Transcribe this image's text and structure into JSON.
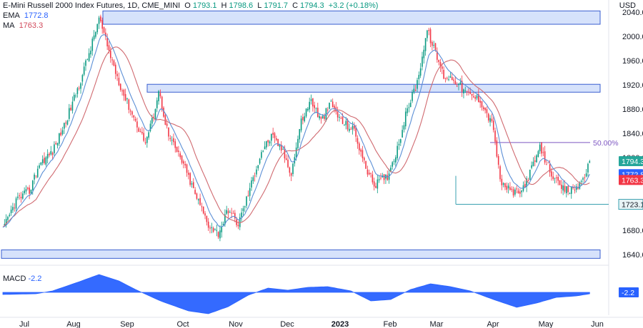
{
  "header": {
    "symbol": "E-Mini Russell 2000 Index Futures, 1D, CME_MINI",
    "open_label": "O",
    "open": "1793.1",
    "high_label": "H",
    "high": "1798.6",
    "low_label": "L",
    "low": "1791.7",
    "close_label": "C",
    "close": "1794.3",
    "change": "+3.2 (+0.18%)",
    "ema_label": "EMA",
    "ema_value": "1772.8",
    "ma_label": "MA",
    "ma_value": "1763.3",
    "currency": "USD"
  },
  "colors": {
    "up": "#089981",
    "down": "#f23645",
    "ema": "#5b8fd6",
    "ma": "#d06a70",
    "zone_fill": "#d6e2fb",
    "zone_stroke": "#3a5fd0",
    "macd": "#2962ff",
    "last_price_bg": "#26a69a",
    "ema_bg": "#2962ff",
    "ma_bg": "#f23645"
  },
  "chart_data": [
    {
      "type": "candlestick",
      "title": "E-Mini Russell 2000 Index Futures, 1D, CME_MINI",
      "ylabel": "USD",
      "ylim": [
        1625,
        2060
      ],
      "y_ticks": [
        "2040.0",
        "2000.0",
        "1960.0",
        "1920.0",
        "1880.0",
        "1840.0",
        "1800.0",
        "1760.0",
        "1720.0",
        "1680.0",
        "1640.0"
      ],
      "x_ticks": [
        "Jul",
        "Aug",
        "Sep",
        "Oct",
        "Nov",
        "Dec",
        "2023",
        "Feb",
        "Mar",
        "Apr",
        "May",
        "Jun"
      ],
      "path_points": [
        [
          0,
          1680
        ],
        [
          8,
          1730
        ],
        [
          16,
          1745
        ],
        [
          22,
          1790
        ],
        [
          30,
          1810
        ],
        [
          38,
          1860
        ],
        [
          46,
          1920
        ],
        [
          54,
          1990
        ],
        [
          58,
          2030
        ],
        [
          64,
          1975
        ],
        [
          72,
          1910
        ],
        [
          80,
          1860
        ],
        [
          86,
          1825
        ],
        [
          90,
          1860
        ],
        [
          94,
          1910
        ],
        [
          100,
          1835
        ],
        [
          108,
          1795
        ],
        [
          116,
          1740
        ],
        [
          124,
          1690
        ],
        [
          130,
          1675
        ],
        [
          136,
          1715
        ],
        [
          142,
          1690
        ],
        [
          148,
          1740
        ],
        [
          156,
          1810
        ],
        [
          162,
          1835
        ],
        [
          168,
          1815
        ],
        [
          174,
          1775
        ],
        [
          180,
          1860
        ],
        [
          186,
          1895
        ],
        [
          192,
          1860
        ],
        [
          198,
          1890
        ],
        [
          204,
          1860
        ],
        [
          212,
          1845
        ],
        [
          218,
          1790
        ],
        [
          224,
          1755
        ],
        [
          232,
          1770
        ],
        [
          238,
          1815
        ],
        [
          244,
          1880
        ],
        [
          250,
          1925
        ],
        [
          256,
          2010
        ],
        [
          260,
          1980
        ],
        [
          266,
          1935
        ],
        [
          272,
          1930
        ],
        [
          280,
          1905
        ],
        [
          288,
          1895
        ],
        [
          296,
          1850
        ],
        [
          300,
          1760
        ],
        [
          306,
          1745
        ],
        [
          312,
          1740
        ],
        [
          318,
          1775
        ],
        [
          324,
          1815
        ],
        [
          330,
          1780
        ],
        [
          336,
          1750
        ],
        [
          342,
          1745
        ],
        [
          348,
          1755
        ],
        [
          354,
          1790
        ]
      ],
      "last_close": 1794.3,
      "ema_last": 1772.8,
      "ma_last": 1763.3,
      "support_level": 1723.1,
      "fib_level": 1825,
      "fib_label": "50.00%",
      "price_labels": {
        "last": "1794.3",
        "ema": "1772.8",
        "ma": "1763.3",
        "support": "1723.1"
      },
      "zones": [
        {
          "name": "top-resistance-zone",
          "from": 2020,
          "to": 2042
        },
        {
          "name": "mid-resistance-zone",
          "from": 1908,
          "to": 1921
        },
        {
          "name": "bottom-support-zone",
          "from": 1634,
          "to": 1648
        }
      ],
      "ema_period_hint": 9,
      "ma_period_hint": 21
    },
    {
      "type": "area",
      "title": "MACD",
      "label": "MACD",
      "value": "-2.2",
      "ylim": [
        -32,
        32
      ],
      "points": [
        [
          0,
          -3
        ],
        [
          20,
          -2
        ],
        [
          30,
          2
        ],
        [
          45,
          14
        ],
        [
          58,
          25
        ],
        [
          70,
          16
        ],
        [
          80,
          4
        ],
        [
          95,
          -12
        ],
        [
          112,
          -26
        ],
        [
          124,
          -30
        ],
        [
          136,
          -20
        ],
        [
          148,
          -4
        ],
        [
          160,
          6
        ],
        [
          172,
          3
        ],
        [
          184,
          7
        ],
        [
          196,
          8
        ],
        [
          210,
          2
        ],
        [
          222,
          -12
        ],
        [
          234,
          -10
        ],
        [
          246,
          4
        ],
        [
          258,
          12
        ],
        [
          270,
          8
        ],
        [
          282,
          2
        ],
        [
          296,
          -10
        ],
        [
          310,
          -21
        ],
        [
          322,
          -15
        ],
        [
          334,
          -7
        ],
        [
          346,
          -5
        ],
        [
          354,
          -2
        ]
      ]
    }
  ]
}
